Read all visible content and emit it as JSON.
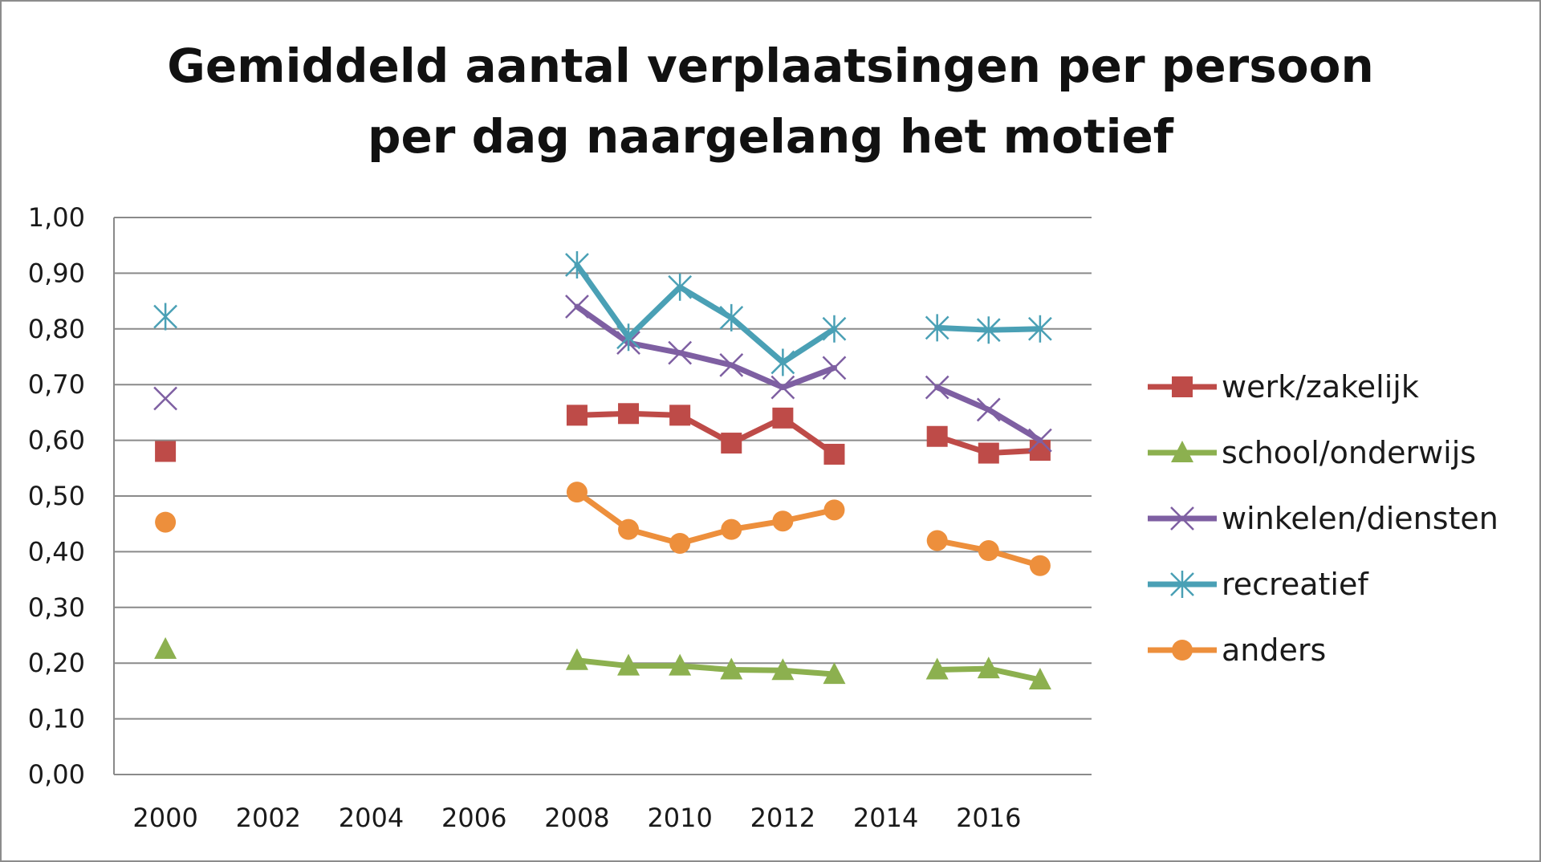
{
  "chart_data": {
    "type": "line",
    "title": [
      "Gemiddeld aantal verplaatsingen per persoon",
      "per dag naargelang het motief"
    ],
    "xlabel": "",
    "ylabel": "",
    "x_ticks": [
      2000,
      2002,
      2004,
      2006,
      2008,
      2010,
      2012,
      2014,
      2016
    ],
    "xlim": [
      1999,
      2018
    ],
    "ylim": [
      0,
      1
    ],
    "y_ticks": [
      "0,00",
      "0,10",
      "0,20",
      "0,30",
      "0,40",
      "0,50",
      "0,60",
      "0,70",
      "0,80",
      "0,90",
      "1,00"
    ],
    "grid": "horizontal",
    "legend_position": "right",
    "x": [
      2000,
      2008,
      2009,
      2010,
      2011,
      2012,
      2013,
      2015,
      2016,
      2017
    ],
    "series": [
      {
        "name": "werk/zakelijk",
        "color": "#be4b48",
        "marker": "square",
        "values": [
          0.58,
          0.645,
          0.648,
          0.645,
          0.595,
          0.64,
          0.575,
          0.607,
          0.577,
          0.582
        ]
      },
      {
        "name": "school/onderwijs",
        "color": "#8cb04f",
        "marker": "triangle",
        "values": [
          0.225,
          0.205,
          0.195,
          0.195,
          0.188,
          0.187,
          0.18,
          0.188,
          0.19,
          0.17
        ]
      },
      {
        "name": "winkelen/diensten",
        "color": "#7e5fa2",
        "marker": "x",
        "values": [
          0.675,
          0.84,
          0.775,
          0.757,
          0.735,
          0.695,
          0.73,
          0.695,
          0.655,
          0.6
        ]
      },
      {
        "name": "recreatief",
        "color": "#4aa0b5",
        "marker": "star",
        "values": [
          0.822,
          0.915,
          0.785,
          0.875,
          0.82,
          0.74,
          0.8,
          0.802,
          0.798,
          0.8
        ]
      },
      {
        "name": "anders",
        "color": "#ed8f3c",
        "marker": "circle",
        "values": [
          0.453,
          0.507,
          0.44,
          0.415,
          0.44,
          0.455,
          0.475,
          0.42,
          0.402,
          0.375
        ]
      }
    ]
  }
}
